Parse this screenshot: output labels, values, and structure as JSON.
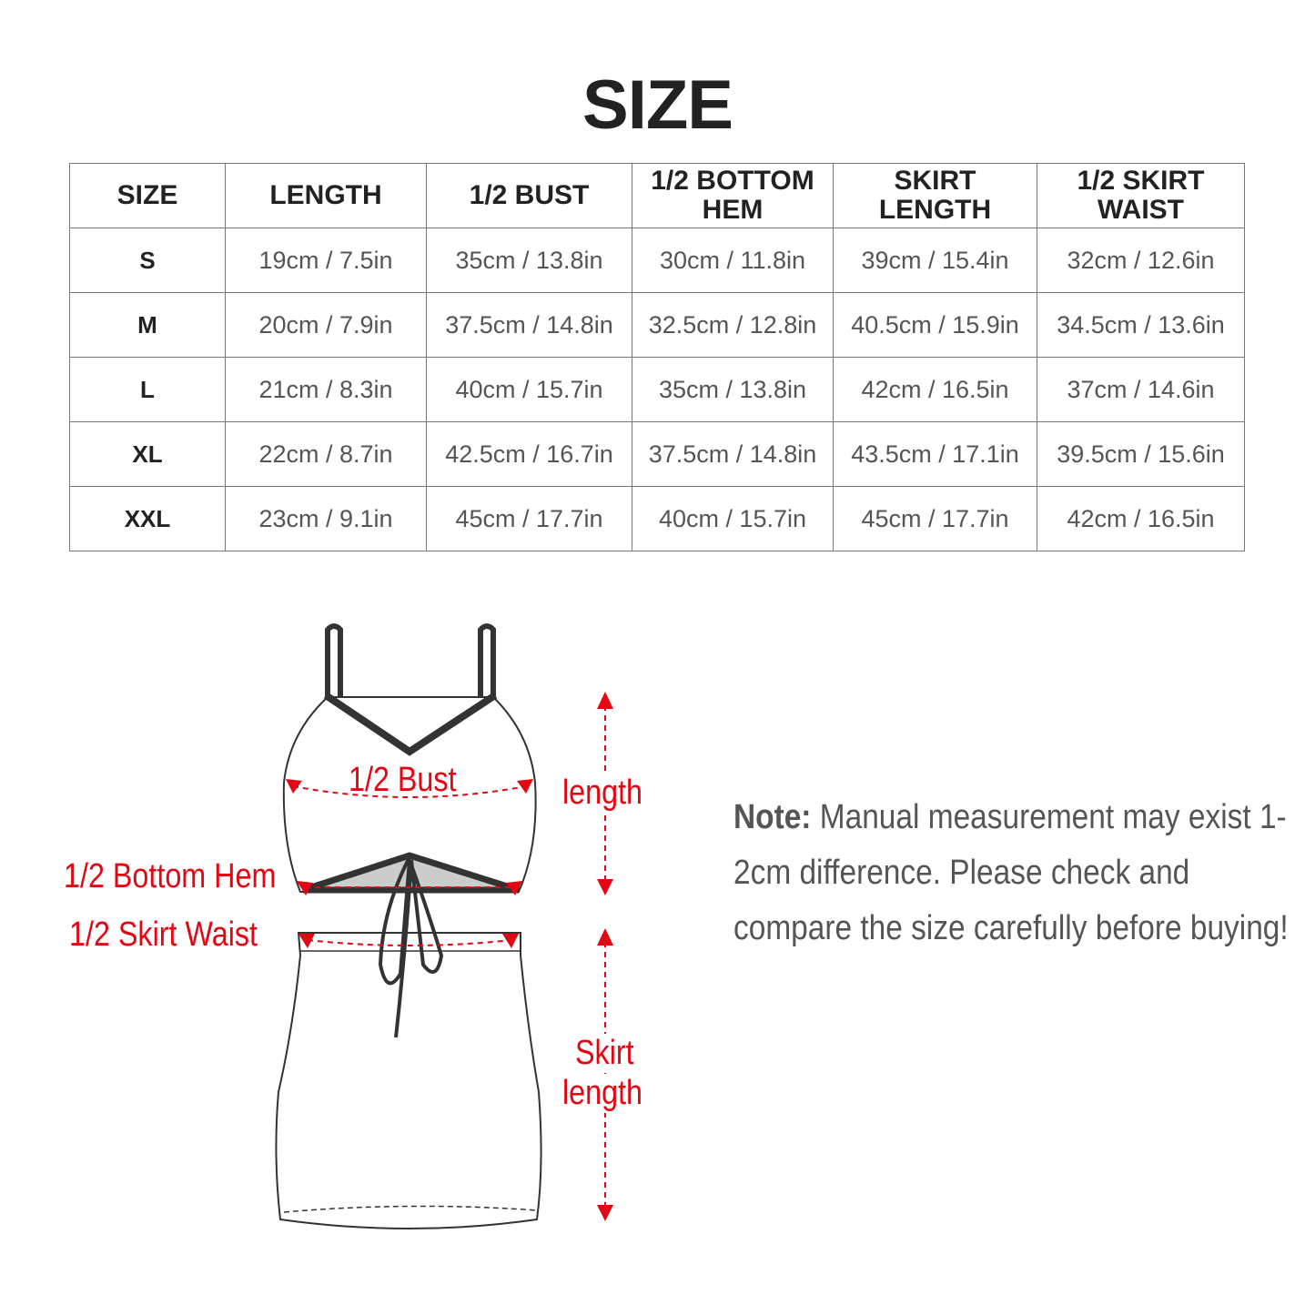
{
  "title": "SIZE",
  "table": {
    "headers": [
      "SIZE",
      "LENGTH",
      "1/2 BUST",
      "1/2 BOTTOM HEM",
      "SKIRT LENGTH",
      "1/2 SKIRT WAIST"
    ],
    "rows": [
      [
        "S",
        "19cm / 7.5in",
        "35cm / 13.8in",
        "30cm / 11.8in",
        "39cm / 15.4in",
        "32cm / 12.6in"
      ],
      [
        "M",
        "20cm / 7.9in",
        "37.5cm / 14.8in",
        "32.5cm / 12.8in",
        "40.5cm / 15.9in",
        "34.5cm / 13.6in"
      ],
      [
        "L",
        "21cm / 8.3in",
        "40cm / 15.7in",
        "35cm / 13.8in",
        "42cm / 16.5in",
        "37cm / 14.6in"
      ],
      [
        "XL",
        "22cm / 8.7in",
        "42.5cm / 16.7in",
        "37.5cm / 14.8in",
        "43.5cm / 17.1in",
        "39.5cm / 15.6in"
      ],
      [
        "XXL",
        "23cm / 9.1in",
        "45cm / 17.7in",
        "40cm / 15.7in",
        "45cm / 17.7in",
        "42cm / 16.5in"
      ]
    ]
  },
  "diagram": {
    "bust": "1/2 Bust",
    "bottom_hem": "1/2 Bottom Hem",
    "skirt_waist": "1/2 Skirt Waist",
    "length": "length",
    "skirt_length_1": "Skirt",
    "skirt_length_2": "length",
    "accent_color": "#e30613"
  },
  "note": {
    "label": "Note:",
    "text": " Manual measurement may exist 1-2cm difference. Please check and compare the size carefully before buying!"
  }
}
